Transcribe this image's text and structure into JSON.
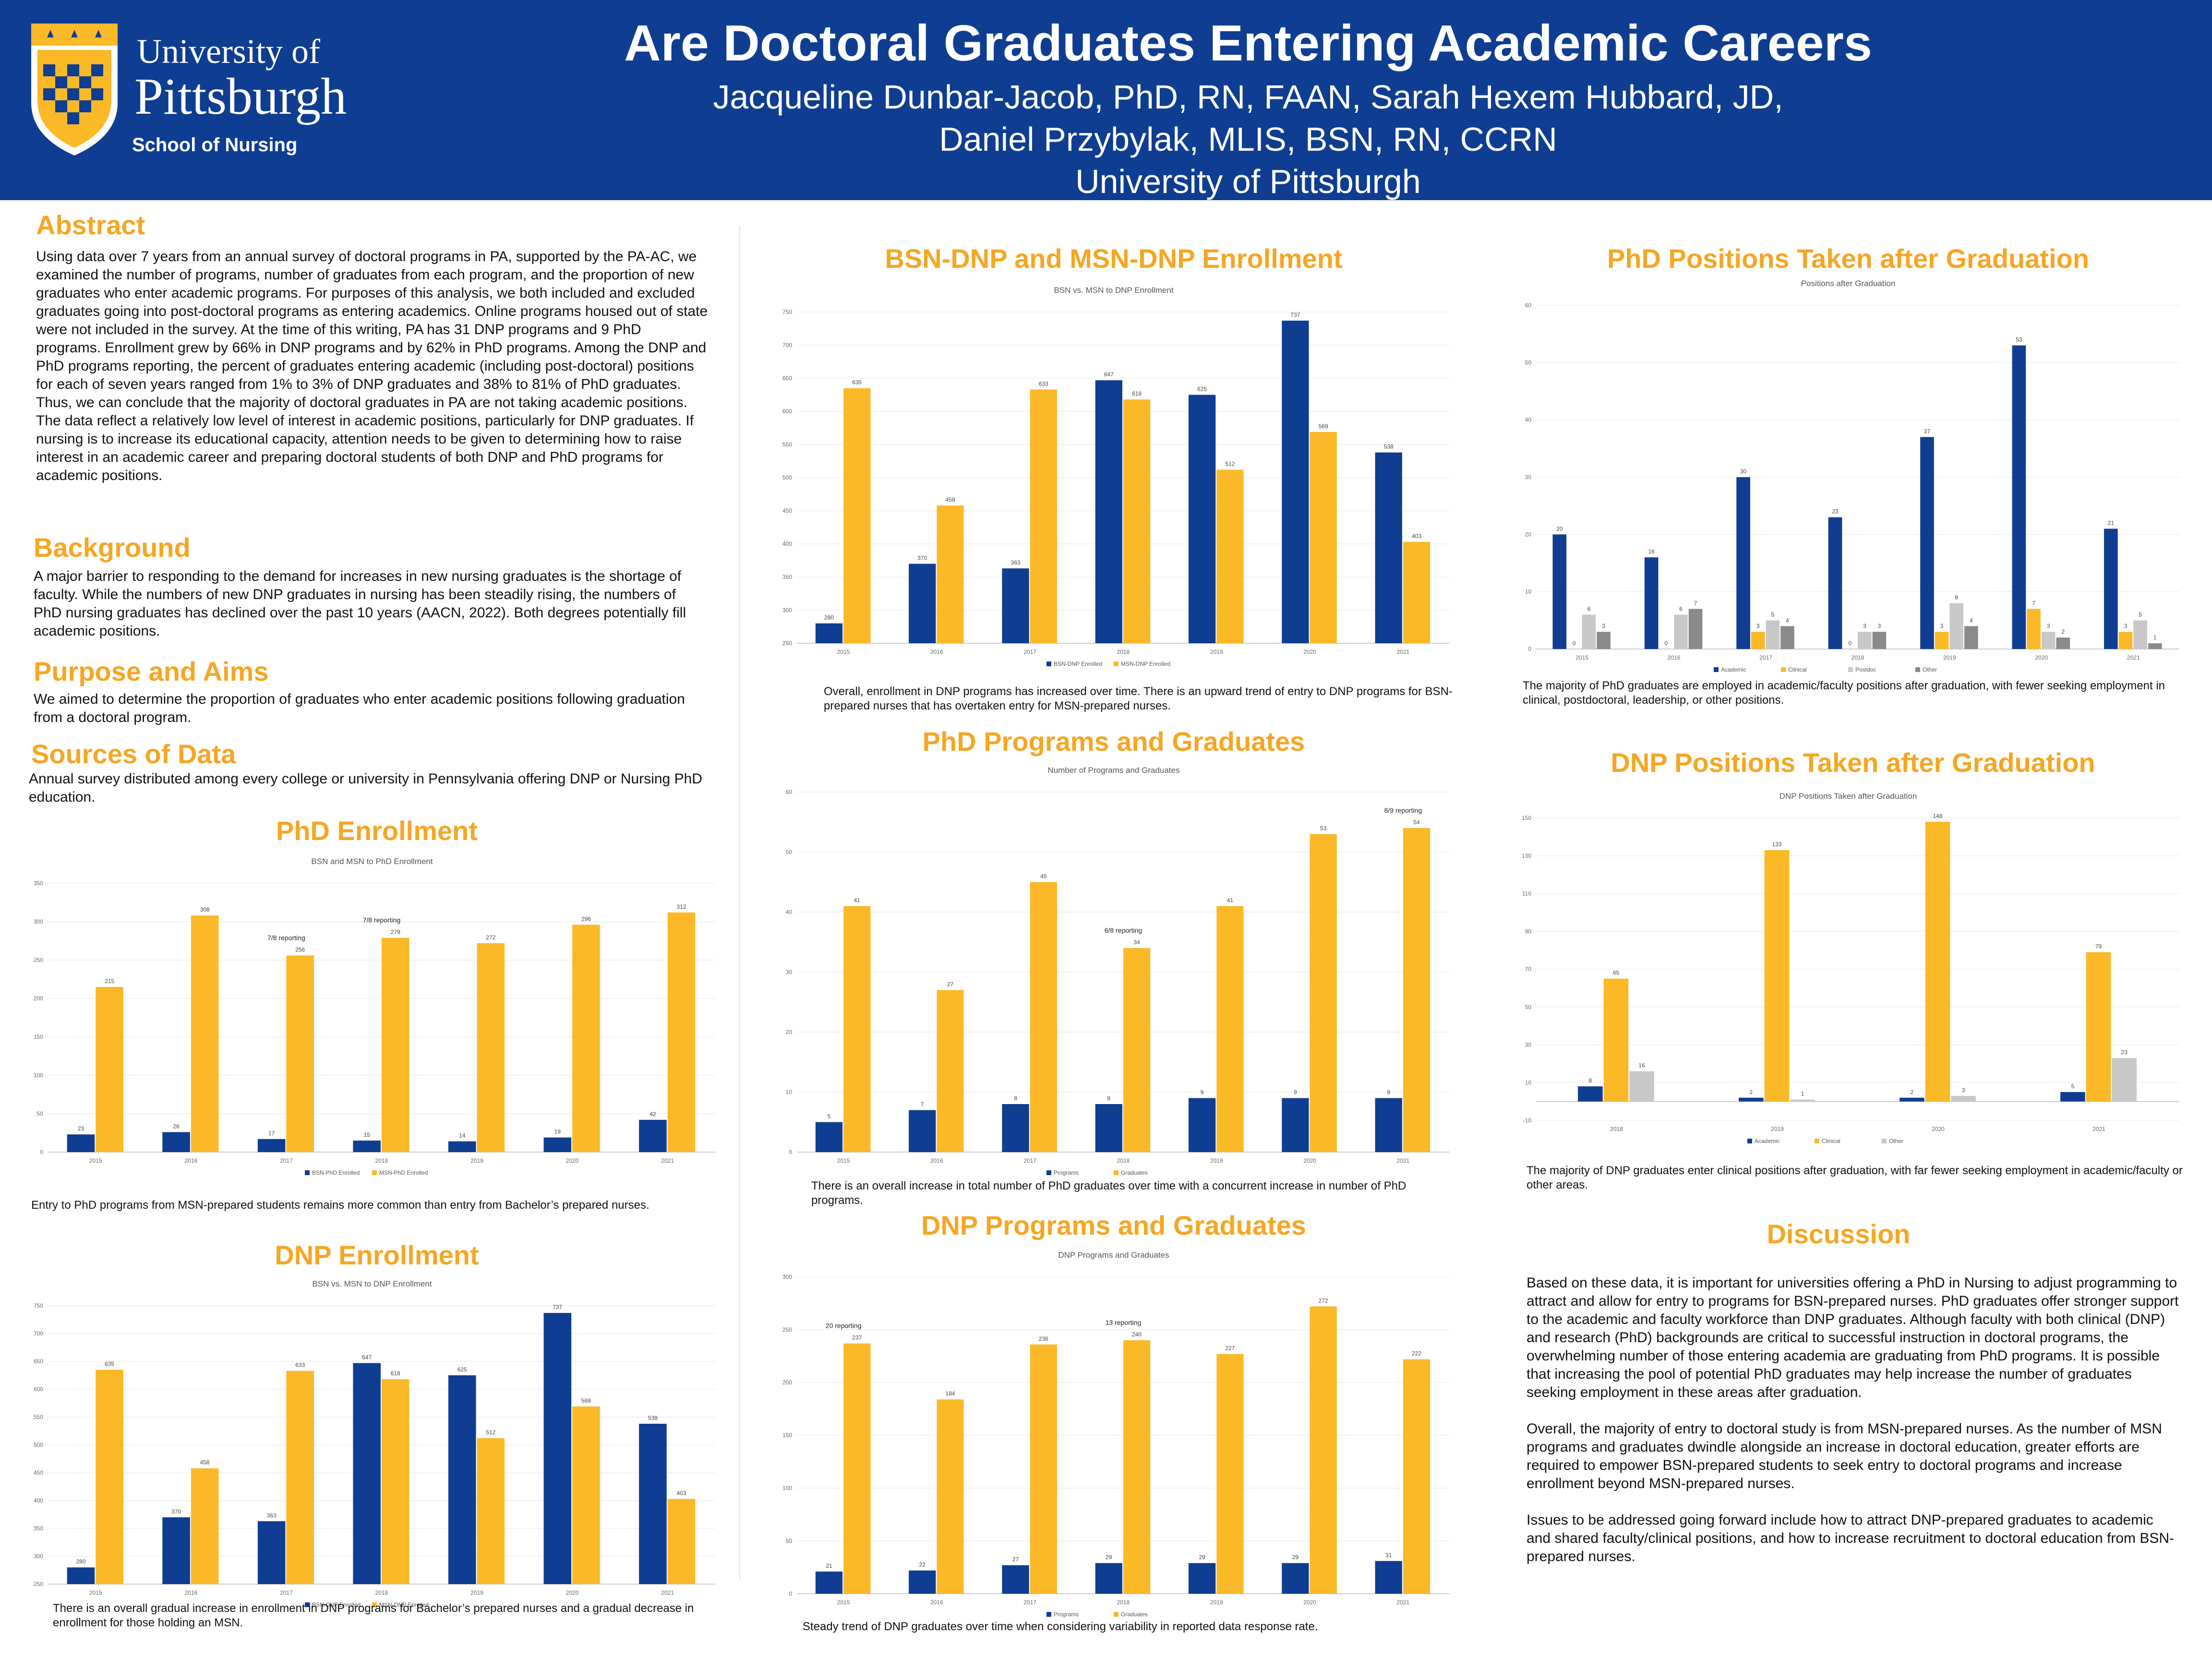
{
  "header": {
    "title": "Are Doctoral Graduates Entering Academic Careers",
    "authors_line1": "Jacqueline Dunbar-Jacob, PhD, RN, FAAN, Sarah Hexem Hubbard, JD,",
    "authors_line2": "Daniel Przybylak, MLIS, BSN, RN, CCRN",
    "affiliation": "University of Pittsburgh",
    "logo_line1": "University of",
    "logo_line2": "Pittsburgh",
    "logo_school": "School of Nursing"
  },
  "colors": {
    "navy": "#0f3d91",
    "gold": "#fbb827",
    "heading": "#f5a623",
    "gray": "#c8c8c8",
    "darkgray": "#8a8a8a"
  },
  "abstract": {
    "heading": "Abstract",
    "text": "Using data over 7 years from an annual survey of doctoral programs in PA, supported by the PA-AC, we examined the number of programs, number of graduates from each program, and the proportion of new graduates who enter academic programs.  For purposes of this analysis, we both included and excluded graduates going into post-doctoral programs as entering academics. Online programs housed out of state were not included in the survey. At the time of this writing, PA has 31 DNP programs and 9 PhD programs.  Enrollment grew by 66% in DNP programs and by 62% in PhD programs.  Among the DNP and PhD programs reporting, the percent of graduates entering academic (including post-doctoral) positions for each of seven years ranged from 1% to 3% of DNP graduates and 38% to 81% of PhD graduates.  Thus, we can conclude that the majority of doctoral graduates in PA are not taking academic positions. The data reflect a relatively low level of interest in academic positions, particularly for DNP graduates.  If nursing is to increase its educational capacity, attention needs to be given to determining how to raise interest in an academic career and preparing doctoral students of both DNP and PhD programs for academic positions."
  },
  "background": {
    "heading": "Background",
    "text": "A major barrier to responding to the demand for increases in new nursing graduates is the shortage of faculty.  While the numbers of new DNP graduates in nursing has been steadily rising, the numbers of PhD nursing graduates has declined over the past 10 years (AACN, 2022).  Both degrees potentially fill academic positions."
  },
  "purpose": {
    "heading": "Purpose and Aims",
    "text": "We aimed to determine the proportion of graduates who enter academic positions following graduation from a doctoral program."
  },
  "sources": {
    "heading": "Sources of Data",
    "text": "Annual survey distributed among every college or university in Pennsylvania offering DNP or Nursing PhD education."
  },
  "sections": {
    "phd_enrollment": "PhD Enrollment",
    "dnp_enrollment": "DNP Enrollment",
    "bsn_msn_dnp": "BSN-DNP and MSN-DNP Enrollment",
    "phd_programs": "PhD Programs and Graduates",
    "dnp_programs": "DNP Programs and Graduates",
    "phd_positions": "PhD Positions Taken after Graduation",
    "dnp_positions": "DNP Positions Taken after Graduation",
    "discussion": "Discussion"
  },
  "captions": {
    "phd_enrollment": "Entry to PhD programs from MSN-prepared students remains more common than entry from Bachelor’s prepared nurses.",
    "dnp_enrollment": "There is an overall gradual increase in enrollment in DNP programs for Bachelor’s prepared nurses and a gradual decrease in enrollment for those holding an MSN.",
    "bsn_msn_dnp": "Overall, enrollment in DNP programs has increased over time. There is an upward trend of entry to DNP programs for BSN-prepared nurses that has overtaken entry for MSN-prepared nurses.",
    "phd_programs": "There is an overall increase in total number of PhD graduates over time with a concurrent increase in number of PhD programs.",
    "dnp_programs": "Steady trend of DNP graduates over time when considering variability in reported data response rate.",
    "phd_positions": "The majority of PhD graduates are employed in academic/faculty positions after graduation, with fewer seeking employment in clinical, postdoctoral, leadership, or other positions.",
    "dnp_positions": "The majority of DNP graduates enter clinical positions after graduation, with far fewer seeking employment in academic/faculty or other areas."
  },
  "discussion": {
    "p1": "Based on these data, it is important for universities offering a PhD in Nursing to adjust programming to attract and allow for entry to programs for BSN-prepared nurses. PhD graduates offer stronger support to the academic and faculty workforce than DNP graduates. Although faculty with both clinical (DNP) and research (PhD) backgrounds are critical to successful instruction in doctoral programs, the overwhelming number of those entering academia are graduating from PhD programs. It is possible that increasing the pool of potential PhD graduates may help increase the number of graduates seeking employment in these areas after graduation.",
    "p2": "Overall, the majority of entry to doctoral study is from MSN-prepared nurses. As the number of MSN programs and graduates dwindle alongside an increase in doctoral education, greater efforts are required to empower BSN-prepared students to seek entry to doctoral programs and increase enrollment beyond MSN-prepared nurses.",
    "p3": "Issues to be addressed going forward include how to attract DNP-prepared graduates to academic and shared faculty/clinical positions, and how to increase recruitment to doctoral education from BSN-prepared nurses."
  },
  "chart_data": [
    {
      "id": "phd_enroll",
      "type": "bar",
      "title": "BSN and MSN to PhD Enrollment",
      "categories": [
        "2015",
        "2016",
        "2017",
        "2018",
        "2019",
        "2020",
        "2021"
      ],
      "ylim": [
        0,
        350
      ],
      "yticks": [
        0,
        50,
        100,
        150,
        200,
        250,
        300,
        350
      ],
      "series": [
        {
          "name": "BSN-PhD Enrolled",
          "color": "#0f3d91",
          "values": [
            23,
            26,
            17,
            15,
            14,
            19,
            42
          ]
        },
        {
          "name": "MSN-PhD Enrolled",
          "color": "#fbb827",
          "values": [
            215,
            308,
            256,
            279,
            272,
            296,
            312
          ]
        }
      ],
      "annotations": [
        {
          "category": "2017",
          "text": "7/8 reporting"
        },
        {
          "category": "2018",
          "text": "7/8 reporting"
        }
      ]
    },
    {
      "id": "dnp_enroll",
      "type": "bar",
      "title": "BSN vs. MSN to DNP Enrollment",
      "categories": [
        "2015",
        "2016",
        "2017",
        "2018",
        "2019",
        "2020",
        "2021"
      ],
      "ylim": [
        250,
        750
      ],
      "yticks": [
        250,
        300,
        350,
        400,
        450,
        500,
        550,
        600,
        650,
        700,
        750
      ],
      "series": [
        {
          "name": "BSN-DNP Enrolled",
          "color": "#0f3d91",
          "values": [
            280,
            370,
            363,
            647,
            625,
            737,
            538
          ]
        },
        {
          "name": "MSN-DNP Enrolled",
          "color": "#fbb827",
          "values": [
            635,
            458,
            633,
            618,
            512,
            569,
            403
          ]
        }
      ]
    },
    {
      "id": "bsn_msn_dnp",
      "type": "bar",
      "title": "BSN vs. MSN to DNP Enrollment",
      "categories": [
        "2015",
        "2016",
        "2017",
        "2018",
        "2019",
        "2020",
        "2021"
      ],
      "ylim": [
        250,
        750
      ],
      "yticks": [
        250,
        300,
        350,
        400,
        450,
        500,
        550,
        600,
        650,
        700,
        750
      ],
      "series": [
        {
          "name": "BSN-DNP Enrolled",
          "color": "#0f3d91",
          "values": [
            280,
            370,
            363,
            647,
            625,
            737,
            538
          ]
        },
        {
          "name": "MSN-DNP Enrolled",
          "color": "#fbb827",
          "values": [
            635,
            458,
            633,
            618,
            512,
            569,
            403
          ]
        }
      ]
    },
    {
      "id": "phd_prog",
      "type": "bar",
      "title": "Number of Programs and Graduates",
      "categories": [
        "2015",
        "2016",
        "2017",
        "2018",
        "2019",
        "2020",
        "2021"
      ],
      "ylim": [
        0,
        60
      ],
      "yticks": [
        0,
        10,
        20,
        30,
        40,
        50,
        60
      ],
      "series": [
        {
          "name": "Programs",
          "color": "#0f3d91",
          "values": [
            5,
            7,
            8,
            8,
            9,
            9,
            9
          ]
        },
        {
          "name": "Graduates",
          "color": "#fbb827",
          "values": [
            41,
            27,
            45,
            34,
            41,
            53,
            54
          ]
        }
      ],
      "annotations": [
        {
          "category": "2018",
          "text": "6/8 reporting"
        },
        {
          "category": "2021",
          "text": "8/9 reporting"
        }
      ]
    },
    {
      "id": "dnp_prog",
      "type": "bar",
      "title": "DNP Programs and Graduates",
      "categories": [
        "2015",
        "2016",
        "2017",
        "2018",
        "2019",
        "2020",
        "2021"
      ],
      "ylim": [
        0,
        300
      ],
      "yticks": [
        0,
        50,
        100,
        150,
        200,
        250,
        300
      ],
      "series": [
        {
          "name": "Programs",
          "color": "#0f3d91",
          "values": [
            21,
            22,
            27,
            29,
            29,
            29,
            31
          ]
        },
        {
          "name": "Graduates",
          "color": "#fbb827",
          "values": [
            237,
            184,
            236,
            240,
            227,
            272,
            222
          ]
        }
      ],
      "annotations": [
        {
          "category": "2015",
          "text": "20 reporting"
        },
        {
          "category": "2018",
          "text": "13 reporting"
        }
      ]
    },
    {
      "id": "phd_pos",
      "type": "bar",
      "title": "Positions after Graduation",
      "categories": [
        "2015",
        "2016",
        "2017",
        "2018",
        "2019",
        "2020",
        "2021"
      ],
      "ylim": [
        0,
        60
      ],
      "yticks": [
        0,
        10,
        20,
        30,
        40,
        50,
        60
      ],
      "series": [
        {
          "name": "Academic",
          "color": "#0f3d91",
          "values": [
            20,
            16,
            30,
            23,
            37,
            53,
            21
          ]
        },
        {
          "name": "Clinical",
          "color": "#fbb827",
          "values": [
            0,
            0,
            3,
            0,
            3,
            7,
            3
          ]
        },
        {
          "name": "Postdoc",
          "color": "#c8c8c8",
          "values": [
            6,
            6,
            5,
            3,
            8,
            3,
            5
          ]
        },
        {
          "name": "Other",
          "color": "#8a8a8a",
          "values": [
            3,
            7,
            4,
            3,
            4,
            2,
            1
          ]
        }
      ]
    },
    {
      "id": "dnp_pos",
      "type": "bar",
      "title": "DNP Positions Taken after Graduation",
      "categories": [
        "2018",
        "2019",
        "2020",
        "2021"
      ],
      "ylim": [
        -10,
        150
      ],
      "yticks": [
        -10,
        10,
        30,
        50,
        70,
        90,
        110,
        130,
        150
      ],
      "series": [
        {
          "name": "Academic",
          "color": "#0f3d91",
          "values": [
            8,
            2,
            2,
            5
          ]
        },
        {
          "name": "Clinical",
          "color": "#fbb827",
          "values": [
            65,
            133,
            148,
            79
          ]
        },
        {
          "name": "Other",
          "color": "#c8c8c8",
          "values": [
            16,
            1,
            3,
            23
          ]
        }
      ]
    }
  ]
}
